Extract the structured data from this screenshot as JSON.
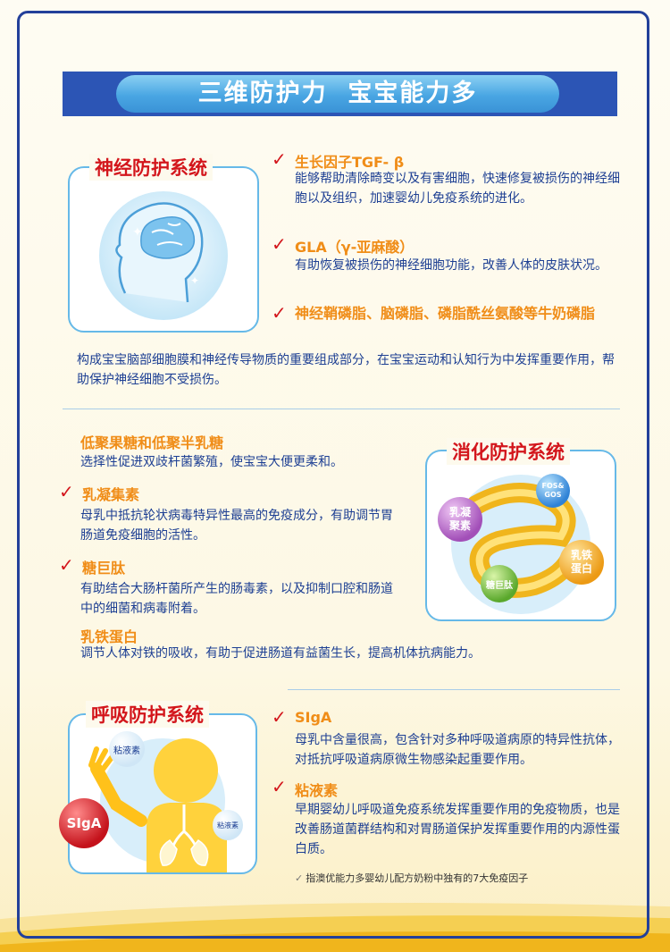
{
  "banner": {
    "title": "三维防护力  宝宝能力多"
  },
  "neural": {
    "title": "神经防护系统",
    "items": [
      {
        "heading": "生长因子TGF- β",
        "text": "能够帮助清除畸变以及有害细胞，快速修复被损伤的神经细胞以及组织，加速婴幼儿免疫系统的进化。"
      },
      {
        "heading": "GLA（γ-亚麻酸）",
        "text": "有助恢复被损伤的神经细胞功能，改善人体的皮肤状况。"
      },
      {
        "heading": "神经鞘磷脂、脑磷脂、磷脂酰丝氨酸等牛奶磷脂",
        "text": ""
      }
    ],
    "summary": "构成宝宝脑部细胞膜和神经传导物质的重要组成部分，在宝宝运动和认知行为中发挥重要作用，帮助保护神经细胞不受损伤。"
  },
  "digestive": {
    "title": "消化防护系统",
    "items": [
      {
        "heading": "低聚果糖和低聚半乳糖",
        "text": "选择性促进双歧杆菌繁殖，使宝宝大便更柔和。"
      },
      {
        "heading": "乳凝集素",
        "text": "母乳中抵抗轮状病毒特异性最高的免疫成分，有助调节胃肠道免疫细胞的活性。"
      },
      {
        "heading": "糖巨肽",
        "text": "有助结合大肠杆菌所产生的肠毒素，以及抑制口腔和肠道中的细菌和病毒附着。"
      },
      {
        "heading": "乳铁蛋白",
        "text": "调节人体对铁的吸收，有助于促进肠道有益菌生长，提高机体抗病能力。"
      }
    ],
    "bubbles": {
      "lectin": "乳凝聚素",
      "fos": "FOS& GOS",
      "lactoferrin": "乳铁蛋白",
      "gmp": "糖巨肽"
    }
  },
  "respiratory": {
    "title": "呼吸防护系统",
    "items": [
      {
        "heading": "SIgA",
        "text": "母乳中含量很高，包含针对多种呼吸道病原的特异性抗体，对抵抗呼吸道病原微生物感染起重要作用。"
      },
      {
        "heading": "粘液素",
        "text": "早期婴幼儿呼吸道免疫系统发挥重要作用的免疫物质，也是改善肠道菌群结构和对胃肠道保护发挥重要作用的内源性蛋白质。"
      }
    ],
    "bubbles": {
      "mucin1": "粘液素",
      "siga": "SIgA",
      "mucin2": "粘液素"
    }
  },
  "footnote": "指澳优能力多婴幼儿配方奶粉中独有的7大免疫因子",
  "colors": {
    "accent_red": "#d3161c",
    "orange": "#f08d18",
    "navy": "#1d3f93",
    "band_blue": "#2c55b5",
    "pill_blue": "#49a6e3"
  }
}
